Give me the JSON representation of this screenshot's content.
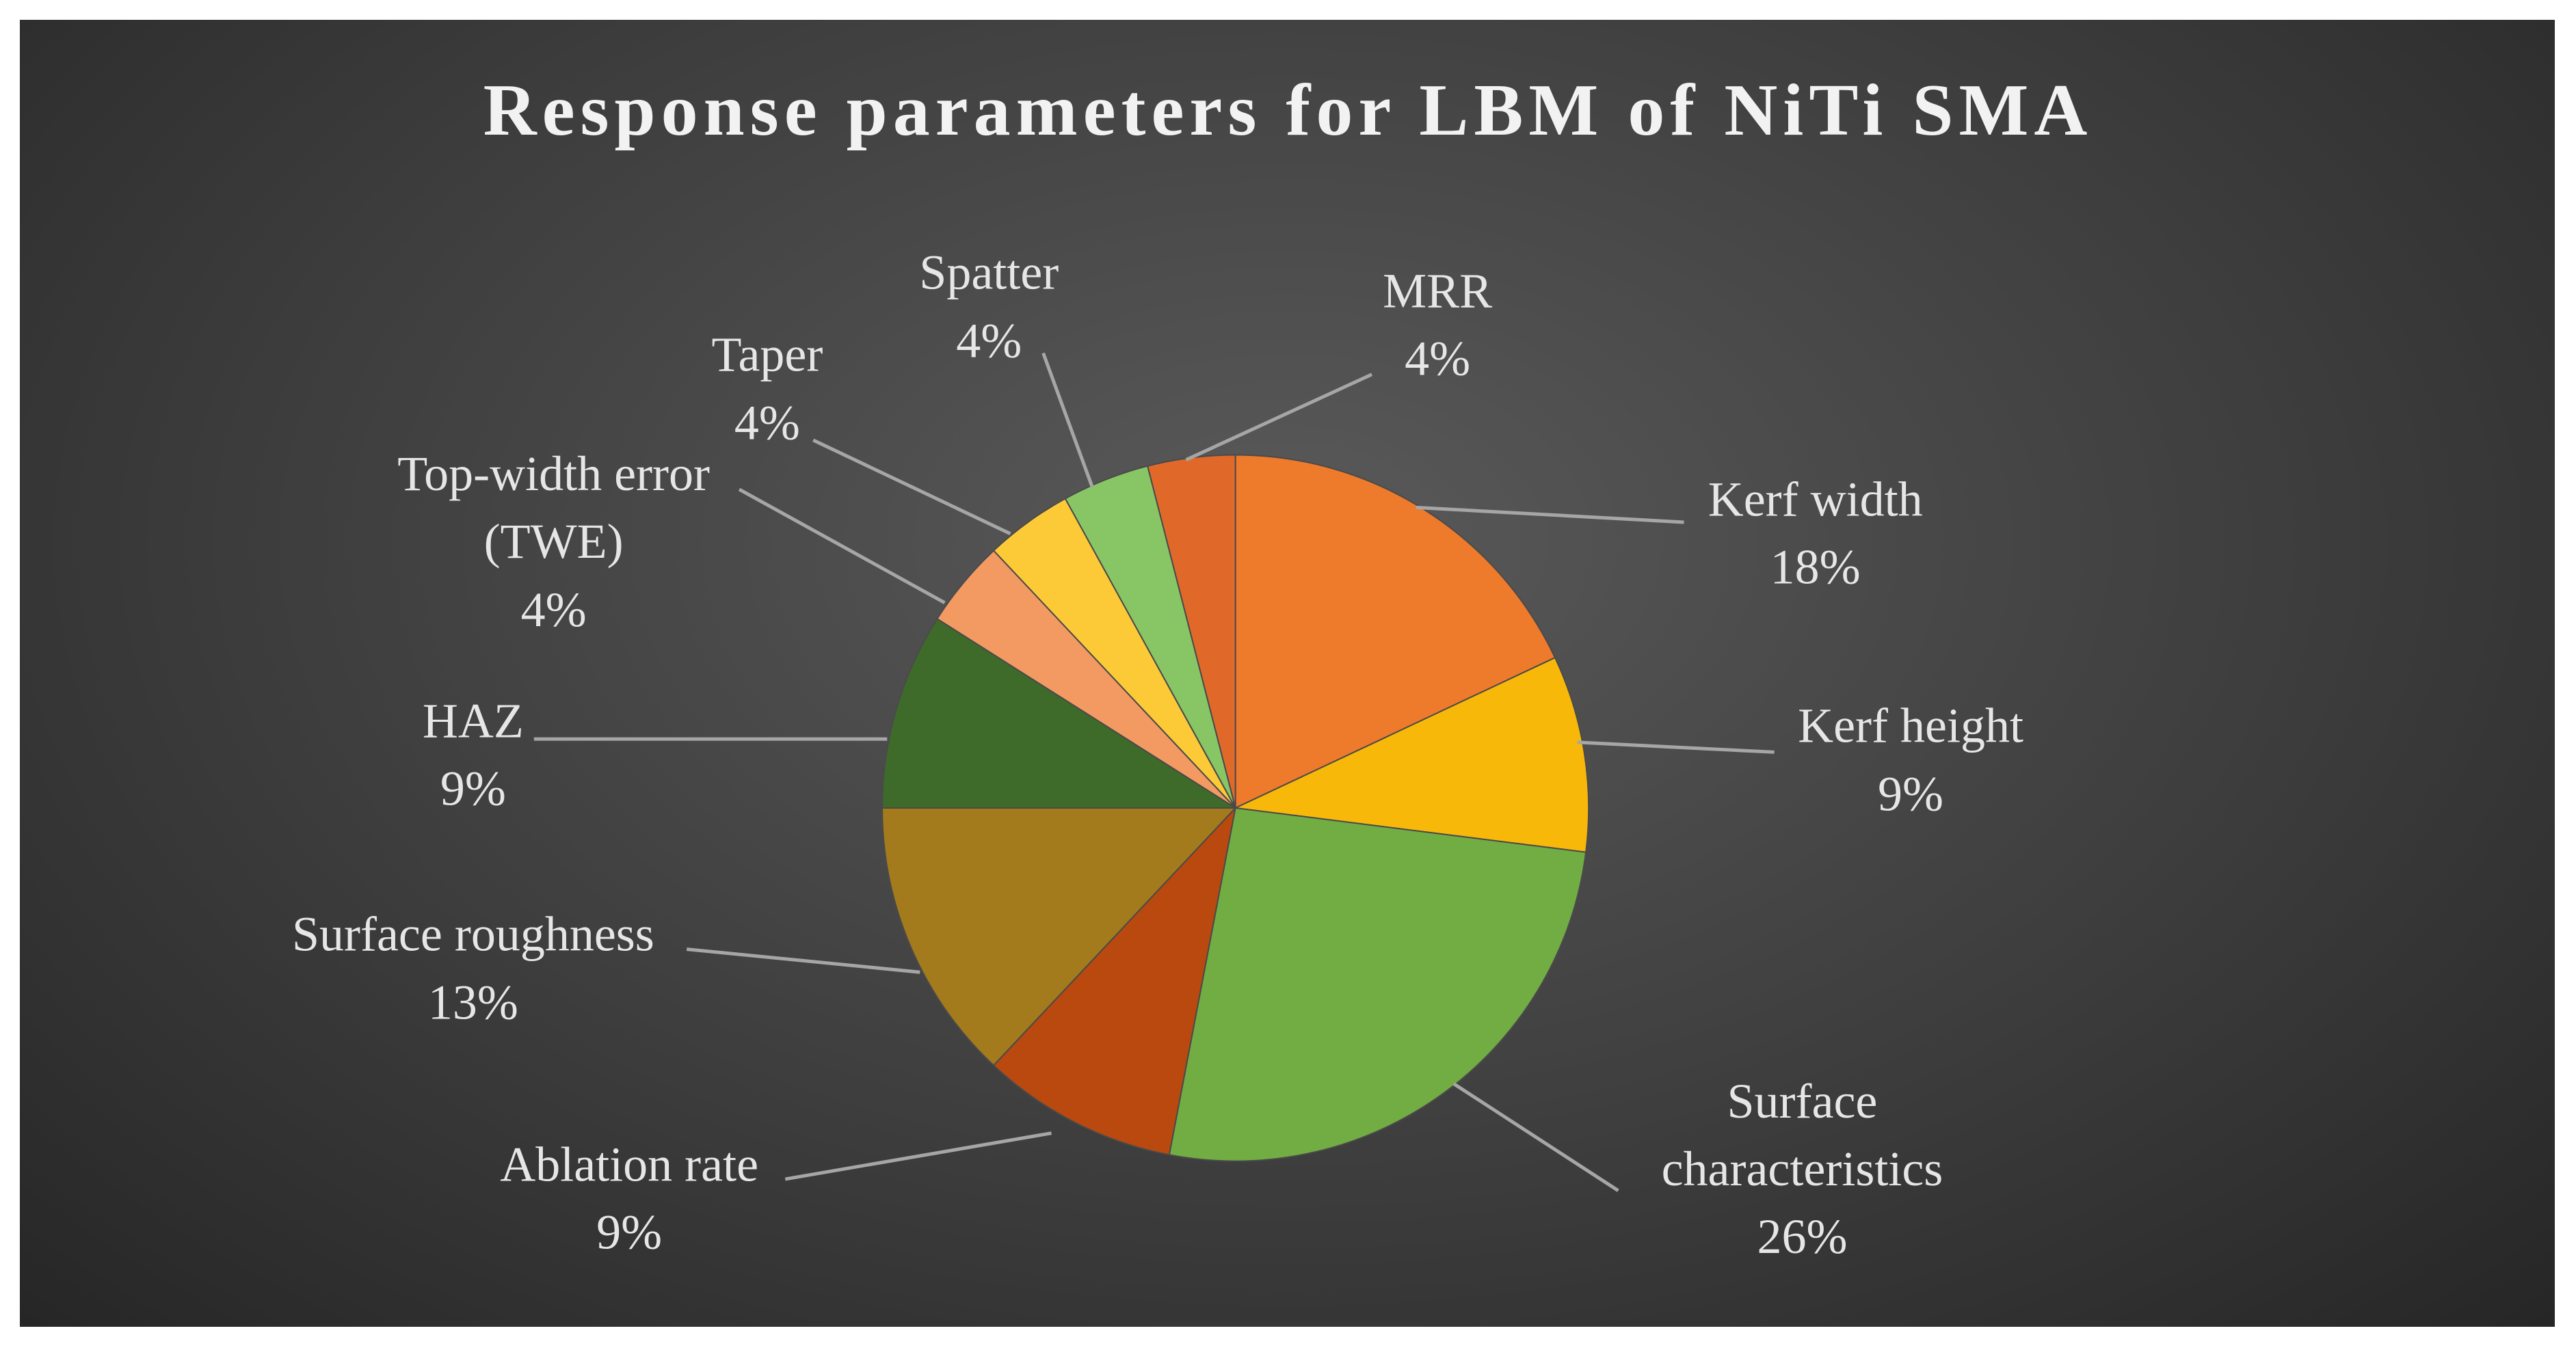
{
  "chart_data": {
    "type": "pie",
    "title": "Response parameters for LBM of NiTi SMA",
    "categories": [
      "Kerf width",
      "Kerf height",
      "Surface characteristics",
      "Ablation rate",
      "Surface roughness",
      "HAZ",
      "Top-width error (TWE)",
      "Taper",
      "Spatter",
      "MRR"
    ],
    "values": [
      18,
      9,
      26,
      9,
      13,
      9,
      4,
      4,
      4,
      4
    ],
    "value_labels": [
      "18%",
      "9%",
      "26%",
      "9%",
      "13%",
      "9%",
      "4%",
      "4%",
      "4%",
      "4%"
    ],
    "colors": [
      "#ee7a2c",
      "#f7b80a",
      "#72ad44",
      "#b9490f",
      "#a37b1c",
      "#3e6b2a",
      "#f29a62",
      "#fdca37",
      "#88c665",
      "#e0692a"
    ]
  }
}
